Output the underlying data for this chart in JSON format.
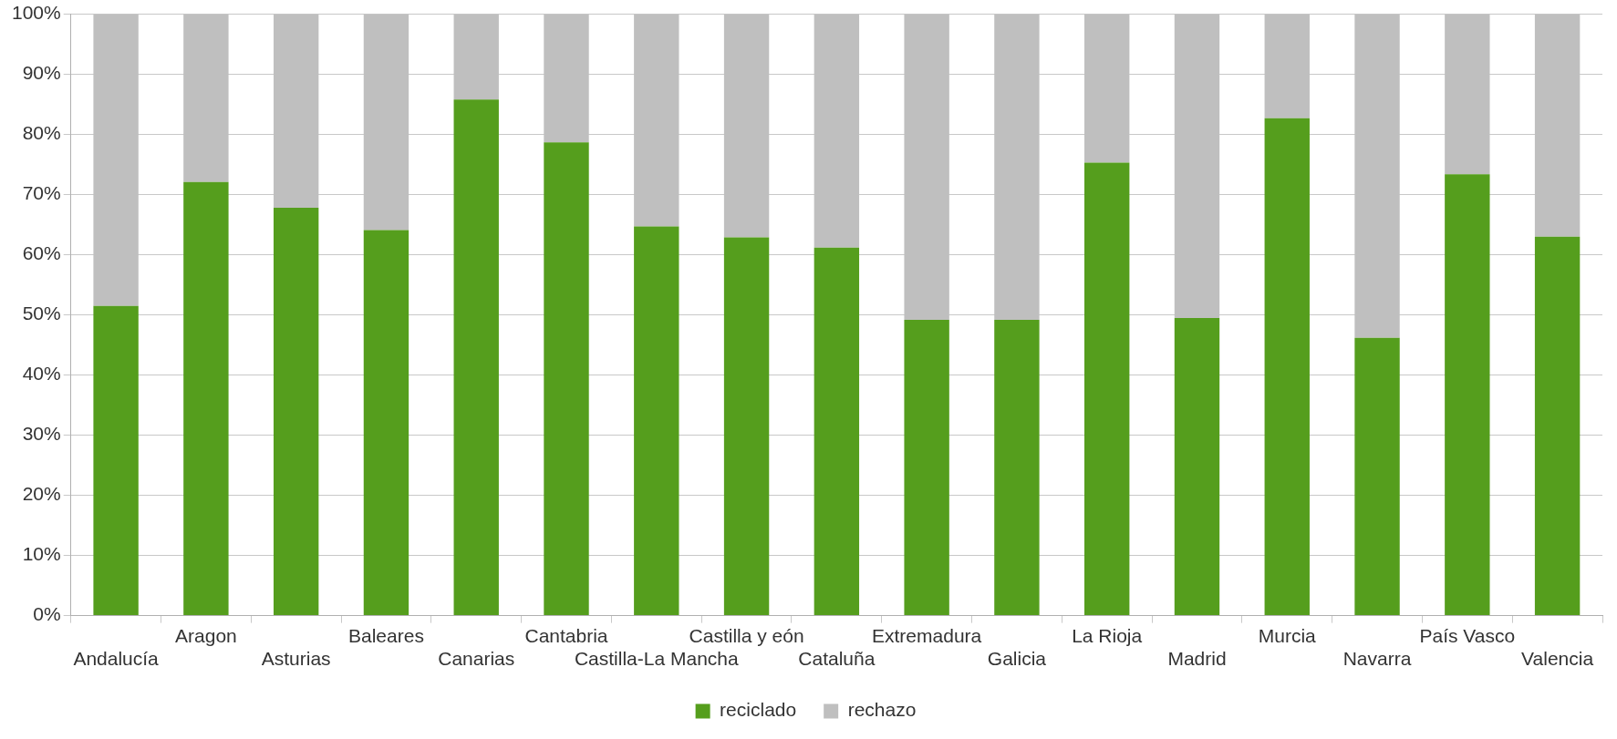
{
  "chart_data": {
    "type": "bar",
    "stacked": true,
    "categories": [
      "Andalucía",
      "Aragon",
      "Asturias",
      "Baleares",
      "Canarias",
      "Cantabria",
      "Castilla-La Mancha",
      "Castilla y eón",
      "Cataluña",
      "Extremadura",
      "Galicia",
      "La Rioja",
      "Madrid",
      "Murcia",
      "Navarra",
      "País Vasco",
      "Valencia"
    ],
    "series": [
      {
        "name": "reciclado",
        "color": "#559e1d",
        "values": [
          51.5,
          72.1,
          67.8,
          64.1,
          85.8,
          78.7,
          64.7,
          62.9,
          61.2,
          49.2,
          49.2,
          75.3,
          49.5,
          82.7,
          46.2,
          73.4,
          63.0
        ]
      },
      {
        "name": "rechazo",
        "color": "#bfbfbf",
        "values": [
          48.5,
          27.9,
          32.2,
          35.9,
          14.2,
          21.3,
          35.3,
          37.1,
          38.8,
          50.8,
          50.8,
          24.7,
          50.5,
          17.3,
          53.8,
          26.6,
          37.0
        ]
      }
    ],
    "ylim": [
      0,
      100
    ],
    "yticks": [
      {
        "value": 0,
        "label": "0%"
      },
      {
        "value": 10,
        "label": "10%"
      },
      {
        "value": 20,
        "label": "20%"
      },
      {
        "value": 30,
        "label": "30%"
      },
      {
        "value": 40,
        "label": "40%"
      },
      {
        "value": 50,
        "label": "50%"
      },
      {
        "value": 60,
        "label": "60%"
      },
      {
        "value": 70,
        "label": "70%"
      },
      {
        "value": 80,
        "label": "80%"
      },
      {
        "value": 90,
        "label": "90%"
      },
      {
        "value": 100,
        "label": "100%"
      }
    ],
    "grid": "y",
    "legend": "bottom"
  }
}
